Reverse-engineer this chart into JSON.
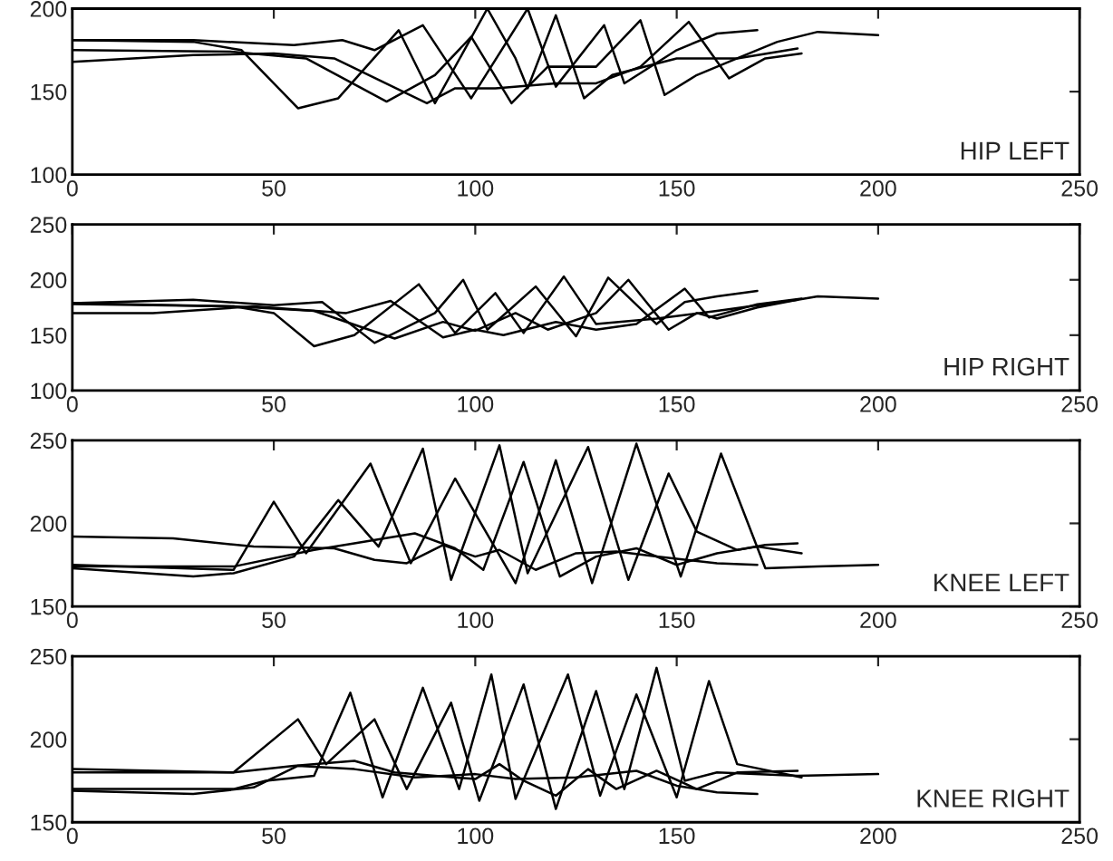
{
  "chart_data": [
    {
      "type": "line",
      "annotations": [
        "HIP LEFT"
      ],
      "xlim": [
        0,
        250
      ],
      "xticks": [
        0,
        50,
        100,
        150,
        200,
        250
      ],
      "ylim": [
        100,
        200
      ],
      "yticks": [
        100,
        150,
        200
      ],
      "grid": false,
      "legend": false,
      "series": [
        {
          "color": "#000000",
          "x": [
            0,
            30,
            42,
            56,
            66,
            81,
            90,
            103,
            110,
            113,
            120,
            127,
            134,
            150,
            165,
            175,
            185,
            200
          ],
          "values": [
            181,
            180,
            175,
            140,
            146,
            187,
            143,
            200,
            170,
            152,
            196,
            146,
            160,
            170,
            170,
            180,
            186,
            184
          ]
        },
        {
          "color": "#000000",
          "x": [
            0,
            30,
            55,
            67,
            75,
            87,
            99,
            113,
            120,
            132,
            137,
            150,
            160,
            170
          ],
          "values": [
            181,
            181,
            178,
            181,
            175,
            190,
            146,
            200,
            153,
            190,
            155,
            175,
            185,
            187
          ]
        },
        {
          "color": "#000000",
          "x": [
            0,
            40,
            58,
            78,
            90,
            99,
            109,
            118,
            130,
            141,
            147,
            155,
            165,
            180
          ],
          "values": [
            175,
            174,
            170,
            144,
            160,
            183,
            143,
            165,
            165,
            193,
            148,
            160,
            170,
            176
          ]
        },
        {
          "color": "#000000",
          "x": [
            0,
            30,
            50,
            65,
            88,
            95,
            105,
            120,
            130,
            141,
            153,
            163,
            172,
            181
          ],
          "values": [
            168,
            172,
            173,
            170,
            143,
            152,
            152,
            155,
            155,
            165,
            192,
            158,
            170,
            173
          ]
        }
      ]
    },
    {
      "type": "line",
      "annotations": [
        "HIP RIGHT"
      ],
      "xlim": [
        0,
        250
      ],
      "xticks": [
        0,
        50,
        100,
        150,
        200,
        250
      ],
      "ylim": [
        100,
        250
      ],
      "yticks": [
        100,
        150,
        200,
        250
      ],
      "grid": false,
      "legend": false,
      "series": [
        {
          "color": "#000000",
          "x": [
            0,
            40,
            50,
            60,
            70,
            86,
            95,
            105,
            112,
            122,
            130,
            145,
            160,
            180,
            185,
            200
          ],
          "values": [
            179,
            176,
            170,
            140,
            150,
            196,
            152,
            188,
            152,
            203,
            160,
            165,
            172,
            182,
            185,
            183
          ]
        },
        {
          "color": "#000000",
          "x": [
            0,
            30,
            50,
            62,
            75,
            90,
            97,
            103,
            115,
            125,
            133,
            145,
            152,
            160,
            170
          ],
          "values": [
            179,
            182,
            177,
            180,
            143,
            170,
            200,
            155,
            194,
            149,
            202,
            160,
            180,
            185,
            190
          ]
        },
        {
          "color": "#000000",
          "x": [
            0,
            40,
            60,
            80,
            92,
            100,
            110,
            118,
            130,
            138,
            148,
            155,
            160,
            170,
            180
          ],
          "values": [
            178,
            176,
            172,
            147,
            162,
            154,
            170,
            155,
            170,
            200,
            155,
            170,
            165,
            175,
            182
          ]
        },
        {
          "color": "#000000",
          "x": [
            0,
            20,
            45,
            68,
            79,
            92,
            100,
            107,
            120,
            130,
            140,
            152,
            158,
            170,
            181
          ],
          "values": [
            170,
            170,
            176,
            170,
            181,
            148,
            155,
            150,
            162,
            155,
            160,
            192,
            166,
            178,
            183
          ]
        }
      ]
    },
    {
      "type": "line",
      "annotations": [
        "KNEE LEFT"
      ],
      "xlim": [
        0,
        250
      ],
      "xticks": [
        0,
        50,
        100,
        150,
        200,
        250
      ],
      "ylim": [
        150,
        250
      ],
      "yticks": [
        150,
        200,
        250
      ],
      "grid": false,
      "legend": false,
      "series": [
        {
          "color": "#000000",
          "x": [
            0,
            40,
            50,
            58,
            74,
            84,
            95,
            110,
            120,
            129,
            140,
            151,
            161,
            172,
            185,
            200
          ],
          "values": [
            175,
            172,
            213,
            182,
            236,
            176,
            227,
            164,
            238,
            164,
            248,
            168,
            242,
            173,
            174,
            175
          ]
        },
        {
          "color": "#000000",
          "x": [
            0,
            30,
            40,
            55,
            66,
            76,
            87,
            94,
            106,
            113,
            128,
            138,
            148,
            155,
            165,
            172,
            180
          ],
          "values": [
            173,
            168,
            170,
            180,
            214,
            186,
            245,
            166,
            247,
            170,
            246,
            166,
            230,
            195,
            184,
            187,
            188
          ]
        },
        {
          "color": "#000000",
          "x": [
            0,
            40,
            60,
            70,
            85,
            95,
            102,
            112,
            121,
            130,
            140,
            150,
            160,
            170,
            181
          ],
          "values": [
            174,
            174,
            184,
            188,
            194,
            185,
            172,
            237,
            168,
            180,
            185,
            175,
            182,
            186,
            182
          ]
        },
        {
          "color": "#000000",
          "x": [
            0,
            25,
            45,
            65,
            75,
            83,
            92,
            100,
            106,
            115,
            125,
            135,
            145,
            160,
            170
          ],
          "values": [
            192,
            191,
            186,
            185,
            178,
            176,
            187,
            180,
            184,
            172,
            182,
            183,
            180,
            176,
            175
          ]
        }
      ]
    },
    {
      "type": "line",
      "annotations": [
        "KNEE RIGHT"
      ],
      "xlim": [
        0,
        250
      ],
      "xticks": [
        0,
        50,
        100,
        150,
        200,
        250
      ],
      "ylim": [
        150,
        250
      ],
      "yticks": [
        150,
        200,
        250
      ],
      "grid": false,
      "legend": false,
      "series": [
        {
          "color": "#000000",
          "x": [
            0,
            40,
            56,
            63,
            75,
            83,
            94,
            101,
            112,
            120,
            130,
            137,
            145,
            152,
            160,
            180,
            200
          ],
          "values": [
            182,
            180,
            212,
            185,
            212,
            170,
            222,
            163,
            233,
            158,
            229,
            170,
            243,
            175,
            180,
            178,
            179
          ]
        },
        {
          "color": "#000000",
          "x": [
            0,
            40,
            48,
            60,
            69,
            77,
            87,
            96,
            104,
            110,
            123,
            131,
            140,
            150,
            158,
            165,
            181
          ],
          "values": [
            170,
            170,
            175,
            178,
            228,
            165,
            231,
            170,
            239,
            164,
            239,
            166,
            227,
            165,
            235,
            185,
            177
          ]
        },
        {
          "color": "#000000",
          "x": [
            0,
            40,
            55,
            70,
            80,
            90,
            100,
            106,
            112,
            120,
            128,
            135,
            145,
            155,
            165,
            180
          ],
          "values": [
            180,
            180,
            184,
            187,
            180,
            178,
            176,
            185,
            175,
            166,
            182,
            170,
            181,
            170,
            180,
            181
          ]
        },
        {
          "color": "#000000",
          "x": [
            0,
            30,
            45,
            56,
            70,
            85,
            100,
            110,
            125,
            140,
            150,
            160,
            170
          ],
          "values": [
            169,
            167,
            171,
            184,
            182,
            177,
            179,
            176,
            177,
            181,
            172,
            168,
            167
          ]
        }
      ]
    }
  ]
}
